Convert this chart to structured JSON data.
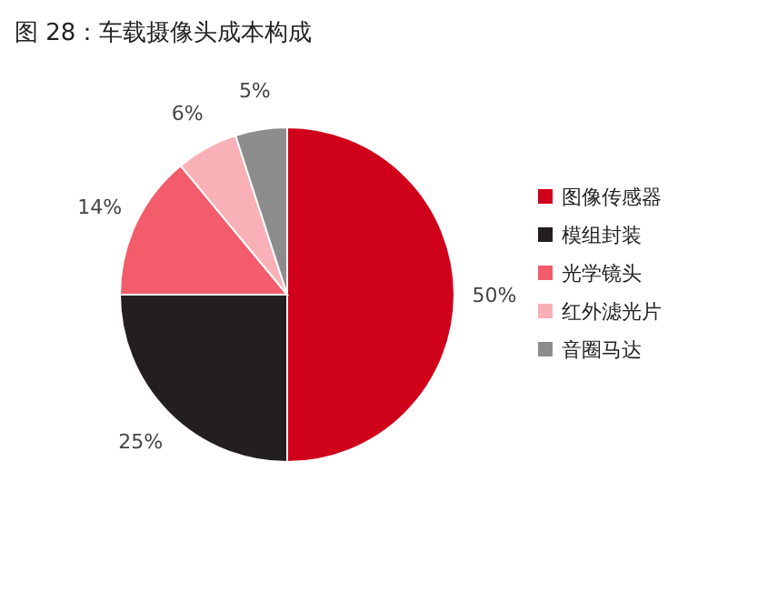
{
  "chart_data": {
    "type": "pie",
    "title": "图 28：车载摄像头成本构成",
    "categories": [
      "图像传感器",
      "模组封装",
      "光学镜头",
      "红外滤光片",
      "音圈马达"
    ],
    "values": [
      50,
      25,
      14,
      6,
      5
    ],
    "value_labels": [
      "50%",
      "25%",
      "14%",
      "6%",
      "5%"
    ],
    "colors": [
      "#d0021b",
      "#231f20",
      "#f25c6b",
      "#f9b0b6",
      "#8c8c8c"
    ],
    "legend": "right"
  }
}
